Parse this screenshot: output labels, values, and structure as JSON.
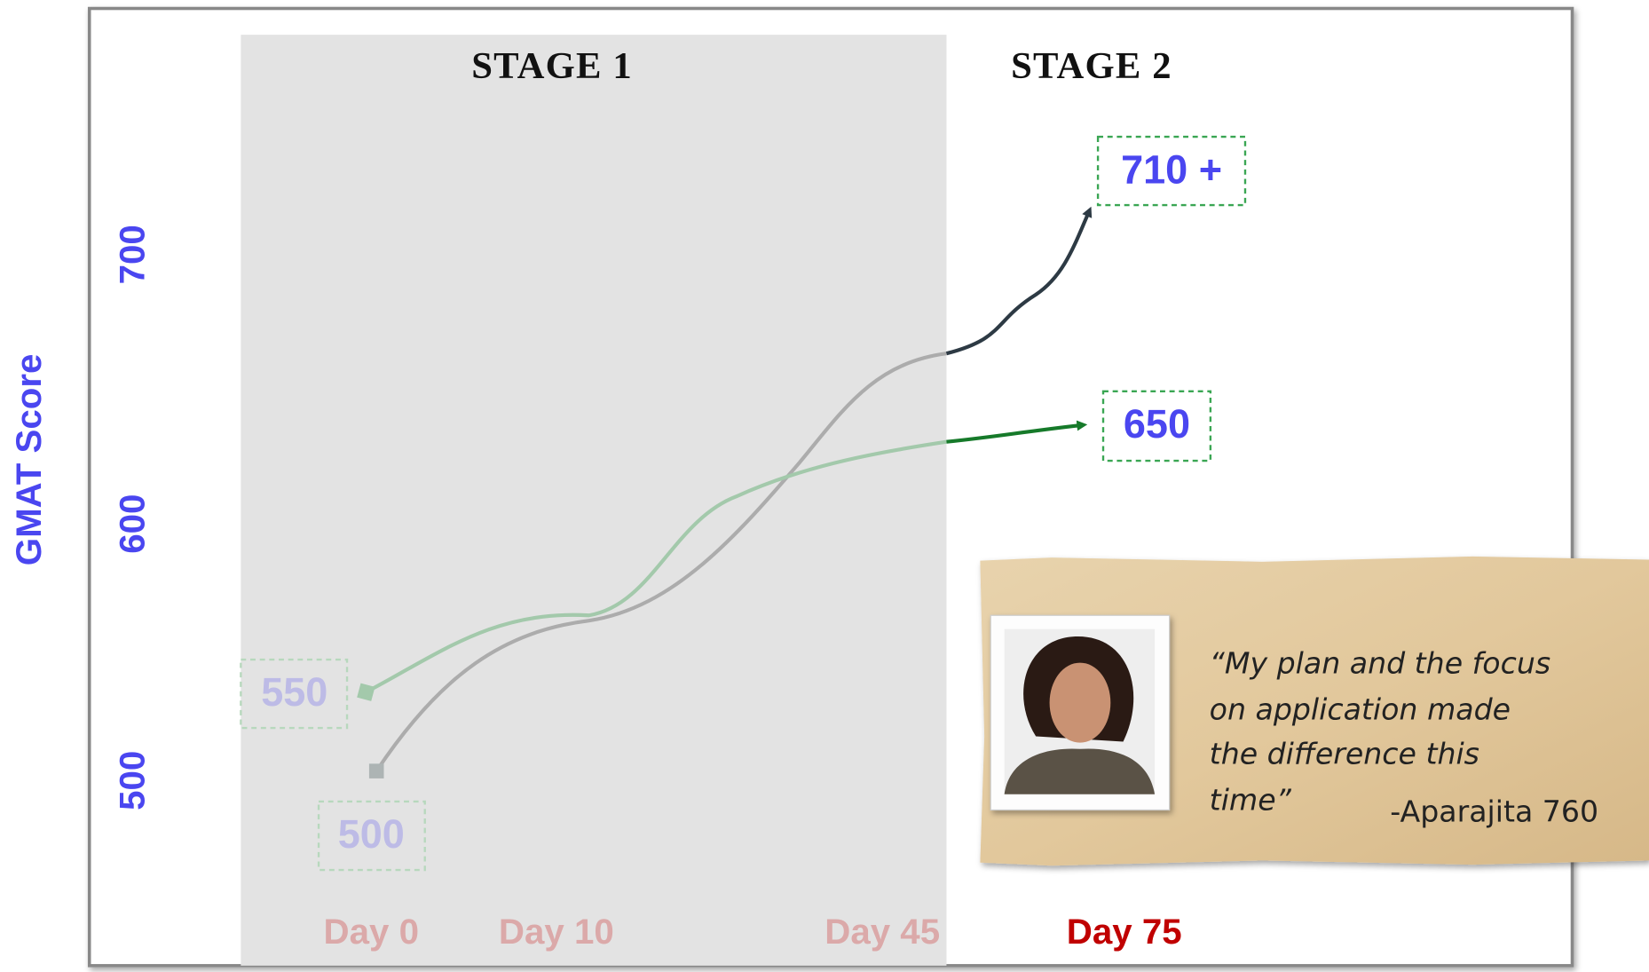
{
  "stages": [
    "STAGE 1",
    "STAGE 2"
  ],
  "axis": {
    "title": "GMAT Score",
    "ticks": [
      "700",
      "600",
      "500"
    ]
  },
  "scores": {
    "target": "710 +",
    "alternate": "650",
    "start_alt": "550",
    "start": "500"
  },
  "days": [
    "Day 0",
    "Day 10",
    "Day 45",
    "Day 75"
  ],
  "quote": {
    "lines": [
      "“My plan and the focus",
      "on application made",
      "the difference this",
      "time”"
    ],
    "attribution": "-Aparajita 760"
  }
}
